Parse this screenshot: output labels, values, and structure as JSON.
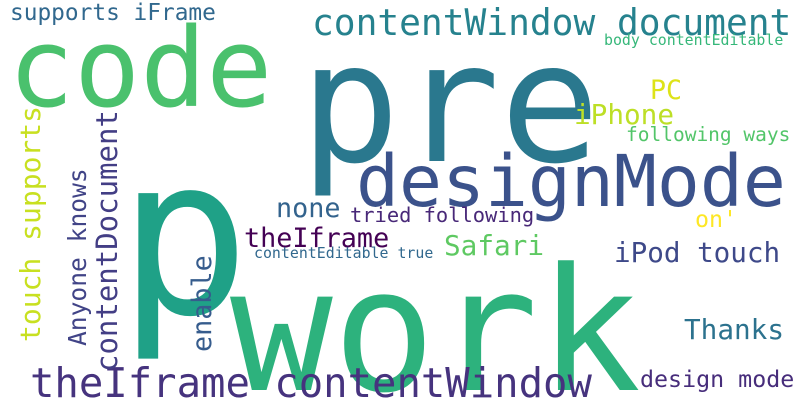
{
  "word_cloud": {
    "words": [
      {
        "id": "p",
        "text": "p",
        "color": "#1fa187"
      },
      {
        "id": "work",
        "text": "work",
        "color": "#2db27d"
      },
      {
        "id": "pre",
        "text": "pre",
        "color": "#2a788e"
      },
      {
        "id": "code",
        "text": "code",
        "color": "#4ac16d"
      },
      {
        "id": "designmode",
        "text": "designMode",
        "color": "#3b528b"
      },
      {
        "id": "contentwindow-document",
        "text": "contentWindow document",
        "color": "#26828e"
      },
      {
        "id": "theiframe-contentwindow",
        "text": "theIframe contentWindow",
        "color": "#46337e"
      },
      {
        "id": "supports-iframe",
        "text": "supports iFrame",
        "color": "#31688e"
      },
      {
        "id": "body-contenteditable",
        "text": "body contentEditable",
        "color": "#35b779"
      },
      {
        "id": "pc",
        "text": "PC",
        "color": "#dde318"
      },
      {
        "id": "iphone",
        "text": "iPhone",
        "color": "#bddf26"
      },
      {
        "id": "following-ways",
        "text": "following ways",
        "color": "#52c569"
      },
      {
        "id": "none",
        "text": "none",
        "color": "#33638d"
      },
      {
        "id": "tried-following",
        "text": "tried following",
        "color": "#482878"
      },
      {
        "id": "on",
        "text": "on'",
        "color": "#fde725"
      },
      {
        "id": "theiframe",
        "text": "theIframe",
        "color": "#440154"
      },
      {
        "id": "safari",
        "text": "Safari",
        "color": "#5ec962"
      },
      {
        "id": "ipod-touch",
        "text": "iPod touch",
        "color": "#3e4989"
      },
      {
        "id": "contenteditable-true",
        "text": "contentEditable true",
        "color": "#31688e"
      },
      {
        "id": "thanks",
        "text": "Thanks",
        "color": "#2c728e"
      },
      {
        "id": "design-mode",
        "text": "design mode",
        "color": "#472d7b"
      },
      {
        "id": "touch-supports",
        "text": "touch supports",
        "color": "#c8e020"
      },
      {
        "id": "anyone-knows",
        "text": "Anyone knows",
        "color": "#414487"
      },
      {
        "id": "contentdocument",
        "text": "contentDocument",
        "color": "#433e85"
      },
      {
        "id": "enable",
        "text": "enable",
        "color": "#365c8d"
      }
    ]
  }
}
